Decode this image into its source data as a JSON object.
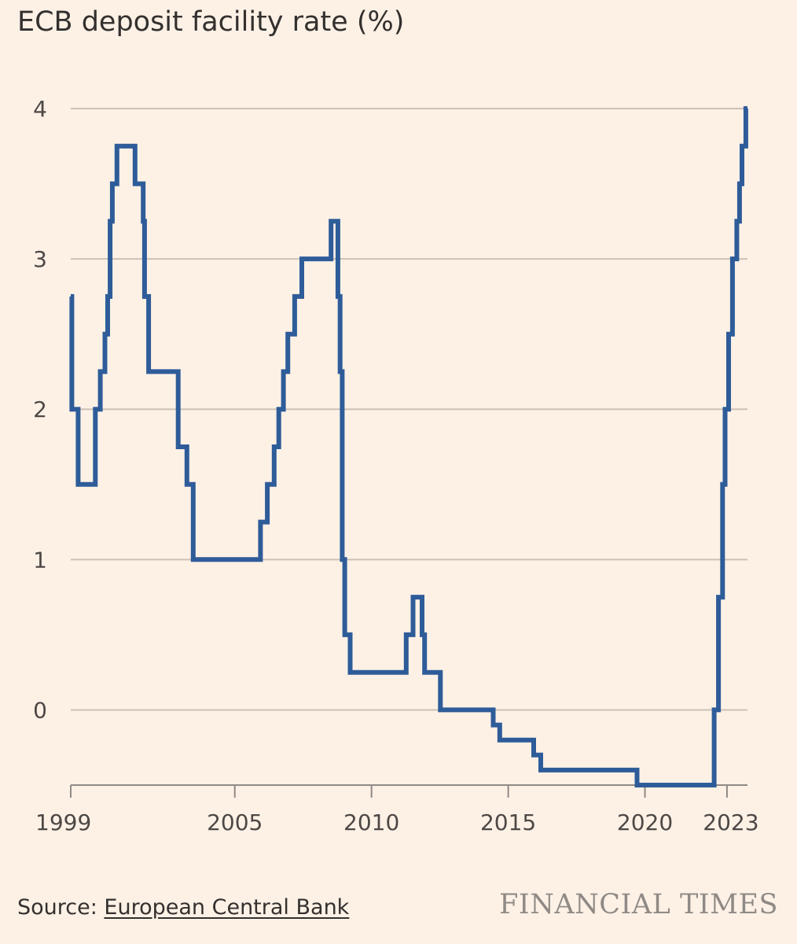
{
  "chart_data": {
    "type": "line",
    "step": true,
    "title": "ECB deposit facility rate (%)",
    "xlabel": "",
    "ylabel": "",
    "xlim": [
      1999.0,
      2023.75
    ],
    "ylim": [
      -0.5,
      4
    ],
    "x_ticks": [
      1999,
      2005,
      2010,
      2015,
      2020,
      2023
    ],
    "y_ticks": [
      0,
      1,
      2,
      3,
      4
    ],
    "grid": true,
    "legend": "none",
    "line_color": "#2e5c99",
    "series": [
      {
        "x": [
          1999.0,
          1999.04,
          1999.27,
          1999.9,
          2000.08,
          2000.25,
          2000.35,
          2000.44,
          2000.52,
          2000.69,
          2000.84,
          2001.35,
          2001.65,
          2001.7,
          2001.85,
          2002.93,
          2003.25,
          2003.48,
          2005.94,
          2006.19,
          2006.44,
          2006.61,
          2006.78,
          2006.94,
          2007.19,
          2007.45,
          2008.52,
          2008.77,
          2008.85,
          2008.93,
          2009.02,
          2009.22,
          2009.27,
          2009.35,
          2011.27,
          2011.52,
          2011.85,
          2011.94,
          2012.52,
          2014.45,
          2014.69,
          2015.93,
          2016.19,
          2019.71,
          2022.53,
          2022.69,
          2022.84,
          2022.93,
          2023.06,
          2023.2,
          2023.36,
          2023.46,
          2023.55,
          2023.69
        ],
        "y": [
          2.75,
          2.0,
          1.5,
          2.0,
          2.25,
          2.5,
          2.75,
          3.25,
          3.5,
          3.75,
          3.75,
          3.5,
          3.25,
          2.75,
          2.25,
          1.75,
          1.5,
          1.0,
          1.25,
          1.5,
          1.75,
          2.0,
          2.25,
          2.5,
          2.75,
          3.0,
          3.25,
          2.75,
          2.25,
          1.0,
          0.5,
          0.25,
          0.25,
          0.25,
          0.5,
          0.75,
          0.5,
          0.25,
          0.0,
          -0.1,
          -0.2,
          -0.3,
          -0.4,
          -0.5,
          0.0,
          0.75,
          1.5,
          2.0,
          2.5,
          3.0,
          3.25,
          3.5,
          3.75,
          4.0
        ]
      }
    ]
  },
  "footer": {
    "source_prefix": "Source: ",
    "source_link": "European Central Bank",
    "logo": "FINANCIAL TIMES"
  }
}
